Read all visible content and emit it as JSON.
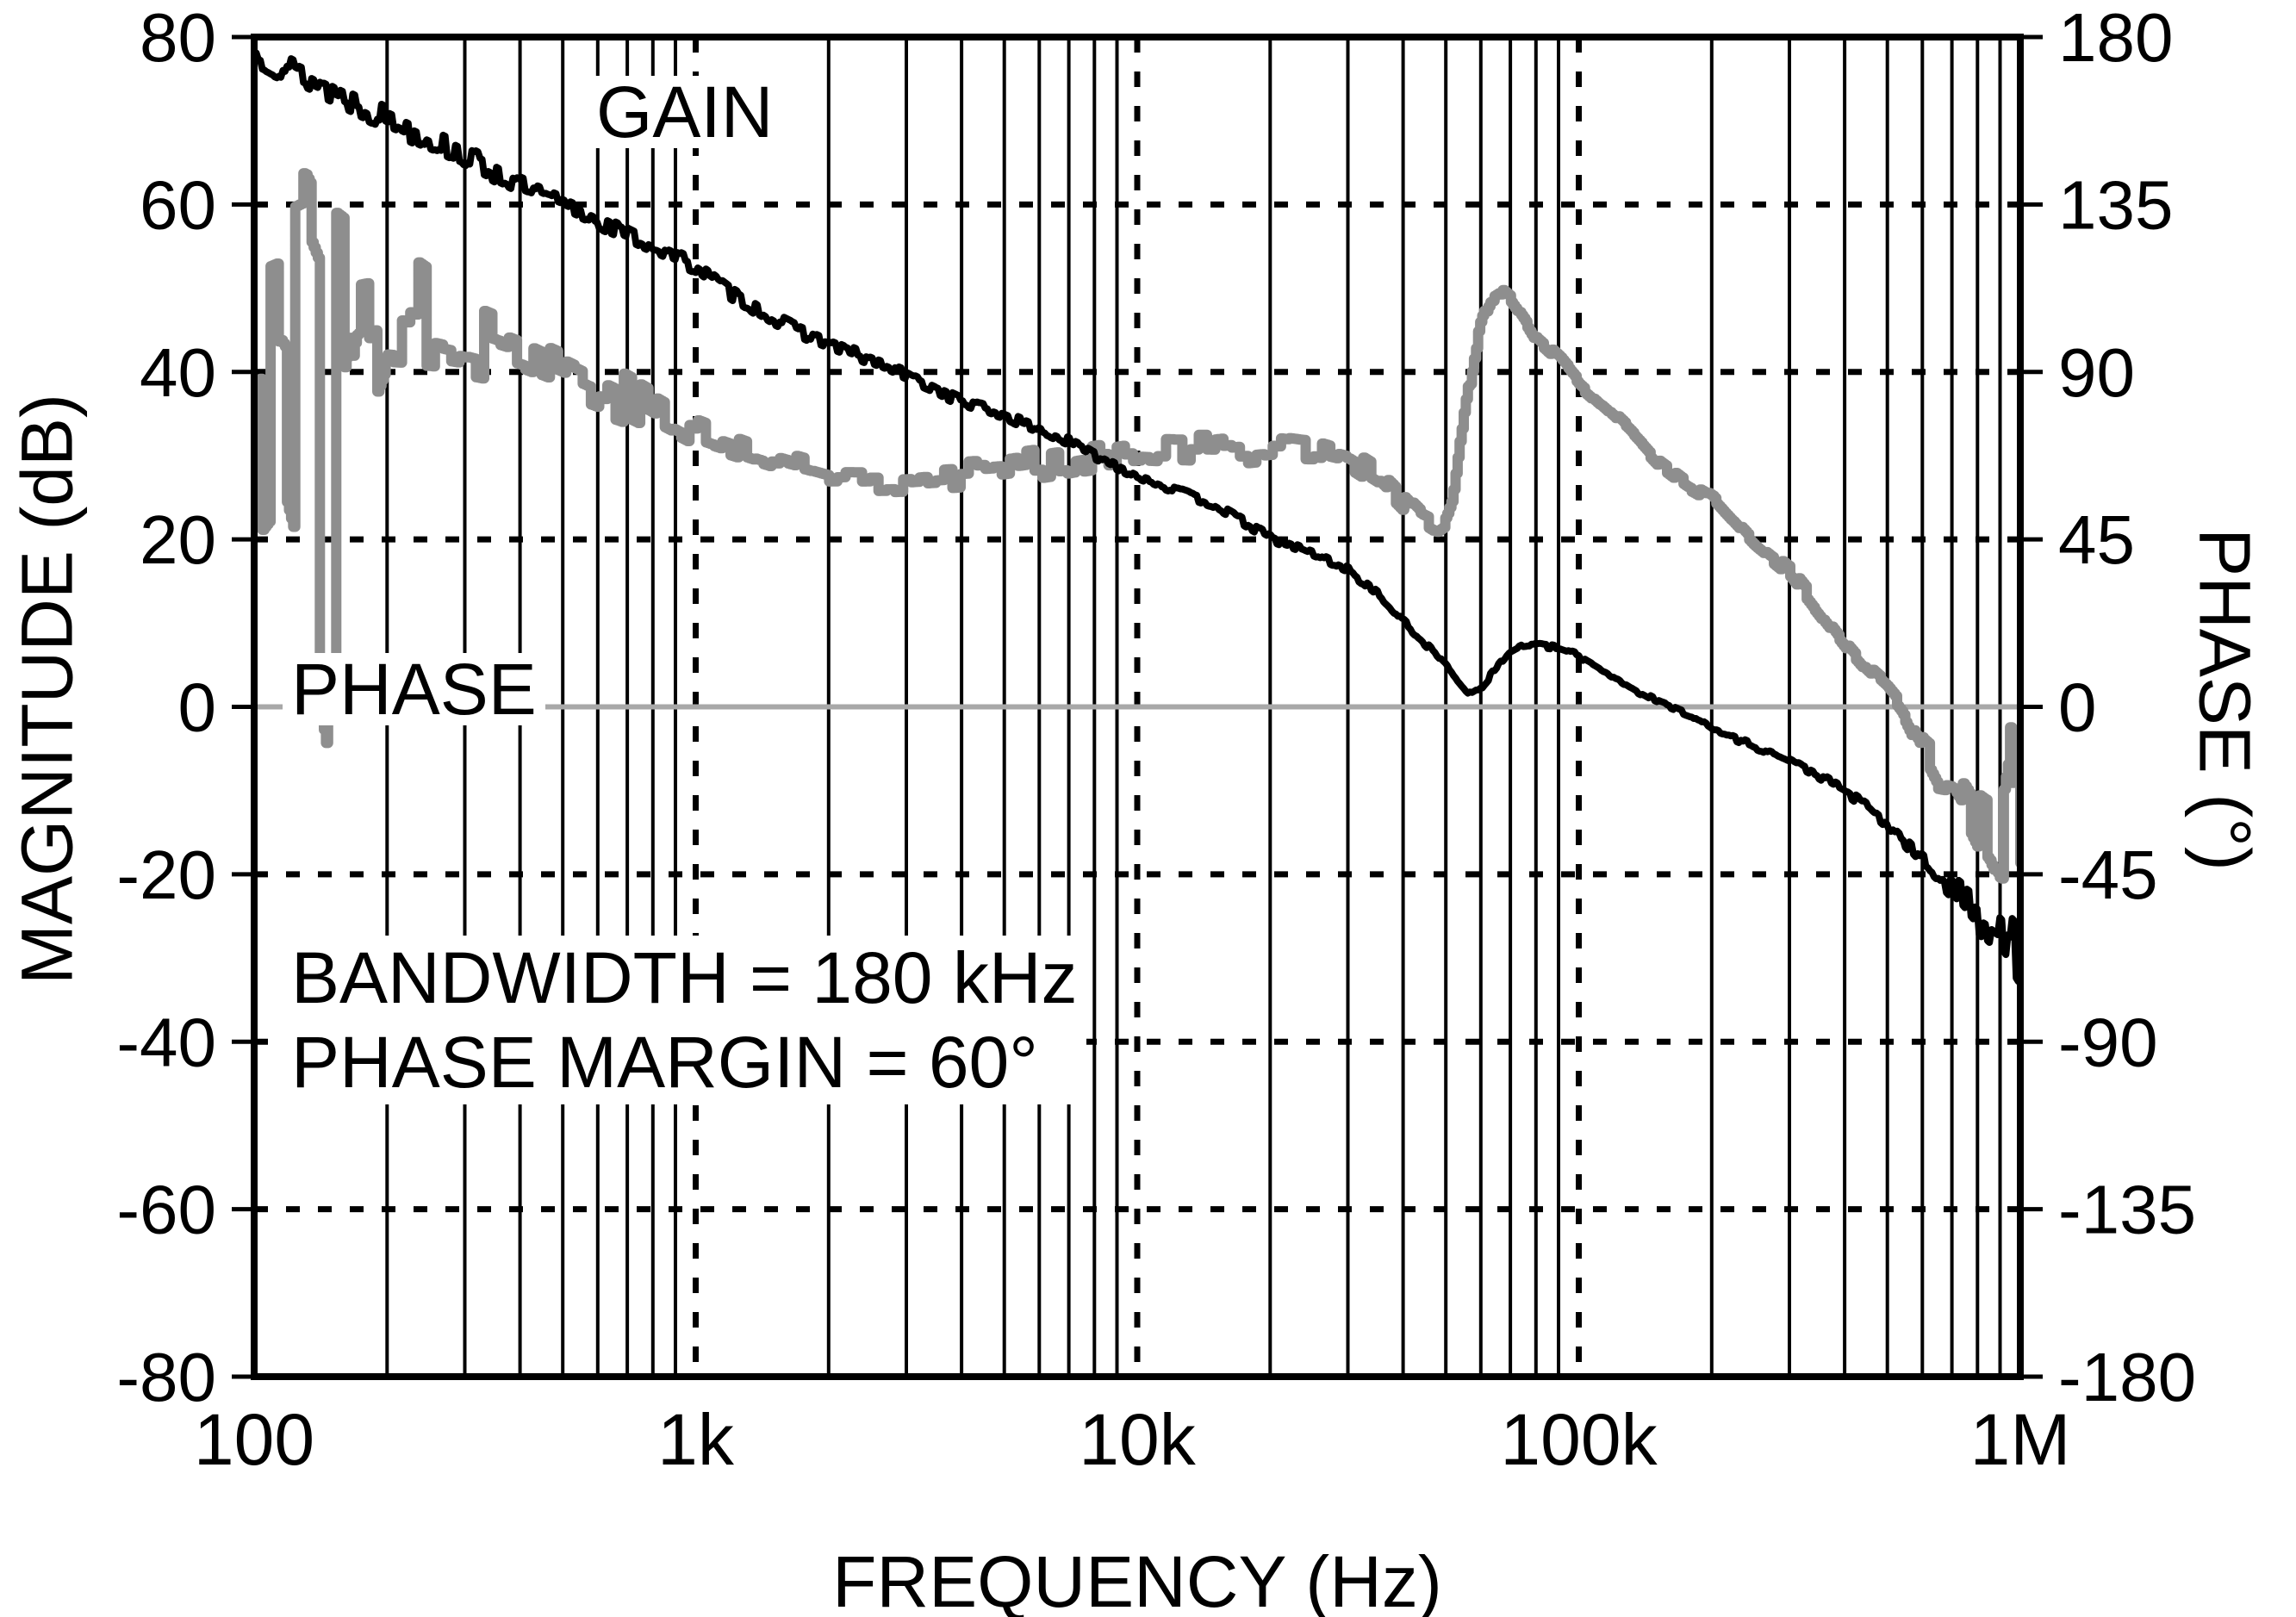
{
  "figure": {
    "background": "#ffffff",
    "frame_color": "#000000",
    "x": {
      "title": "FREQUENCY (Hz)",
      "scale": "log",
      "min": 100,
      "max": 1000000,
      "ticks": [
        {
          "v": 100,
          "label": "100"
        },
        {
          "v": 1000,
          "label": "1k"
        },
        {
          "v": 10000,
          "label": "10k"
        },
        {
          "v": 100000,
          "label": "100k"
        },
        {
          "v": 1000000,
          "label": "1M"
        }
      ]
    },
    "y_left": {
      "title": "MAGNITUDE (dB)",
      "min": -80,
      "max": 80,
      "ticks": [
        {
          "v": 80,
          "label": "80"
        },
        {
          "v": 60,
          "label": "60"
        },
        {
          "v": 40,
          "label": "40"
        },
        {
          "v": 20,
          "label": "20"
        },
        {
          "v": 0,
          "label": "0"
        },
        {
          "v": -20,
          "label": "-20"
        },
        {
          "v": -40,
          "label": "-40"
        },
        {
          "v": -60,
          "label": "-60"
        },
        {
          "v": -80,
          "label": "-80"
        }
      ]
    },
    "y_right": {
      "title": "PHASE (°)",
      "min": -180,
      "max": 180,
      "ticks": [
        {
          "v": 180,
          "label": "180"
        },
        {
          "v": 135,
          "label": "135"
        },
        {
          "v": 90,
          "label": "90"
        },
        {
          "v": 45,
          "label": "45"
        },
        {
          "v": 0,
          "label": "0"
        },
        {
          "v": -45,
          "label": "-45"
        },
        {
          "v": -90,
          "label": "-90"
        },
        {
          "v": -135,
          "label": "-135"
        },
        {
          "v": -180,
          "label": "-180"
        }
      ]
    },
    "annotation": {
      "line1": "BANDWIDTH = 180 kHz",
      "line2": "PHASE MARGIN = 60°"
    }
  },
  "chart_data": {
    "type": "line",
    "x_scale": "log",
    "xlabel": "FREQUENCY (Hz)",
    "ylabel_left": "MAGNITUDE (dB)",
    "ylabel_right": "PHASE (°)",
    "xlim": [
      100,
      1000000
    ],
    "ylim_left": [
      -80,
      80
    ],
    "ylim_right": [
      -180,
      180
    ],
    "grid": {
      "x_minor_style": "solid",
      "x_decade_style": "dashed",
      "y_major_style": "dashed",
      "grid_color": "#000000",
      "zero_line_style": "solid",
      "zero_line_color": "#a8a8a8"
    },
    "legend_position": "in-plot-text-labels",
    "bandwidth_hz": 180000,
    "phase_margin_deg": 60,
    "series": [
      {
        "name": "PHASE",
        "axis": "right",
        "units": "deg",
        "color": "#8e8e8e",
        "width": 12,
        "render": "step",
        "hold": 4,
        "seed": 77,
        "anchors": [
          [
            100,
            95,
            55
          ],
          [
            115,
            100,
            50
          ],
          [
            130,
            90,
            70
          ],
          [
            150,
            60,
            90
          ],
          [
            170,
            100,
            35
          ],
          [
            200,
            108,
            18
          ],
          [
            250,
            104,
            14
          ],
          [
            300,
            101,
            12
          ],
          [
            400,
            96,
            10
          ],
          [
            500,
            91,
            9
          ],
          [
            700,
            83,
            7
          ],
          [
            1000,
            73,
            6
          ],
          [
            1500,
            66,
            5
          ],
          [
            2000,
            62,
            5
          ],
          [
            3000,
            62,
            4.5
          ],
          [
            4000,
            63,
            4.5
          ],
          [
            5000,
            64,
            4
          ],
          [
            7000,
            66.5,
            4
          ],
          [
            10000,
            69.5,
            4
          ],
          [
            15000,
            69,
            4.5
          ],
          [
            20000,
            70.5,
            4.5
          ],
          [
            25000,
            69.5,
            3.5
          ],
          [
            30000,
            67,
            3
          ],
          [
            35000,
            62,
            3
          ],
          [
            40000,
            55,
            3
          ],
          [
            44000,
            50,
            3
          ],
          [
            47000,
            48,
            3.5
          ],
          [
            50000,
            50,
            3
          ],
          [
            52000,
            56,
            2.5
          ],
          [
            55000,
            79,
            2
          ],
          [
            58000,
            96,
            2
          ],
          [
            60000,
            104,
            1.5
          ],
          [
            63000,
            110,
            1.5
          ],
          [
            66000,
            111.5,
            1.5
          ],
          [
            70000,
            109,
            1.5
          ],
          [
            75000,
            104,
            1.5
          ],
          [
            80000,
            98.5,
            1.5
          ],
          [
            90000,
            93,
            1.5
          ],
          [
            100000,
            86.5,
            1.5
          ],
          [
            115000,
            80,
            1.5
          ],
          [
            130000,
            74,
            1.5
          ],
          [
            150000,
            66,
            1.5
          ],
          [
            175000,
            60,
            1.5
          ],
          [
            200000,
            56,
            1.5
          ],
          [
            250000,
            43.5,
            1.5
          ],
          [
            300000,
            36,
            1.8
          ],
          [
            350000,
            26,
            2
          ],
          [
            400000,
            17,
            2
          ],
          [
            450000,
            10,
            2
          ],
          [
            500000,
            5,
            2.2
          ],
          [
            540000,
            0,
            2.5
          ],
          [
            600000,
            -11,
            3
          ],
          [
            650000,
            -17,
            6
          ],
          [
            700000,
            -18.5,
            5
          ],
          [
            750000,
            -24,
            7
          ],
          [
            800000,
            -30,
            8
          ],
          [
            850000,
            -33,
            9
          ],
          [
            900000,
            -38,
            11
          ],
          [
            940000,
            -32,
            20
          ],
          [
            965000,
            -25,
            45
          ],
          [
            1000000,
            -27,
            40
          ]
        ]
      },
      {
        "name": "GAIN",
        "axis": "left",
        "units": "dB",
        "color": "#000000",
        "width": 8,
        "render": "line",
        "hold": 2,
        "seed": 13,
        "anchors": [
          [
            100,
            78,
            1.6
          ],
          [
            120,
            76.2,
            1.8
          ],
          [
            150,
            73.6,
            1.8
          ],
          [
            200,
            70.3,
            1.6
          ],
          [
            250,
            67.8,
            1.5
          ],
          [
            300,
            65.8,
            1.4
          ],
          [
            400,
            62.2,
            1.2
          ],
          [
            500,
            60,
            1.1
          ],
          [
            700,
            56.4,
            1.0
          ],
          [
            1000,
            52.6,
            0.9
          ],
          [
            1200,
            49.5,
            0.9
          ],
          [
            1500,
            46.3,
            0.8
          ],
          [
            2000,
            43.4,
            0.8
          ],
          [
            3000,
            39.6,
            0.7
          ],
          [
            4000,
            36.5,
            0.7
          ],
          [
            5000,
            34.8,
            0.6
          ],
          [
            7000,
            31.6,
            0.6
          ],
          [
            10000,
            27.6,
            0.5
          ],
          [
            15000,
            24.1,
            0.5
          ],
          [
            20000,
            20.2,
            0.5
          ],
          [
            25000,
            18.3,
            0.5
          ],
          [
            30000,
            16.4,
            0.4
          ],
          [
            35000,
            13.5,
            0.4
          ],
          [
            40000,
            10.2,
            0.4
          ],
          [
            45000,
            7.5,
            0.35
          ],
          [
            50000,
            5,
            0.3
          ],
          [
            53000,
            3.3,
            0.3
          ],
          [
            56000,
            1.9,
            0.3
          ],
          [
            58000,
            1.7,
            0.3
          ],
          [
            60000,
            2.3,
            0.3
          ],
          [
            65000,
            4.6,
            0.3
          ],
          [
            70000,
            6.6,
            0.3
          ],
          [
            75000,
            7.4,
            0.3
          ],
          [
            80000,
            7.4,
            0.3
          ],
          [
            90000,
            7.0,
            0.3
          ],
          [
            100000,
            6.1,
            0.3
          ],
          [
            115000,
            4.2,
            0.3
          ],
          [
            130000,
            2.4,
            0.3
          ],
          [
            150000,
            0.7,
            0.3
          ],
          [
            180000,
            -1.0,
            0.3
          ],
          [
            200000,
            -2.6,
            0.3
          ],
          [
            250000,
            -4.7,
            0.35
          ],
          [
            300000,
            -6.4,
            0.4
          ],
          [
            350000,
            -8.2,
            0.45
          ],
          [
            400000,
            -10,
            0.5
          ],
          [
            450000,
            -12,
            0.6
          ],
          [
            500000,
            -14.1,
            0.7
          ],
          [
            550000,
            -16.3,
            0.8
          ],
          [
            600000,
            -18.5,
            1.0
          ],
          [
            650000,
            -20.1,
            1.2
          ],
          [
            700000,
            -21.6,
            1.6
          ],
          [
            750000,
            -23.2,
            2.0
          ],
          [
            800000,
            -24.7,
            2.6
          ],
          [
            850000,
            -25.4,
            3.2
          ],
          [
            900000,
            -26,
            4.0
          ],
          [
            950000,
            -27.5,
            4.5
          ],
          [
            1000000,
            -29,
            5.0
          ]
        ]
      }
    ]
  }
}
